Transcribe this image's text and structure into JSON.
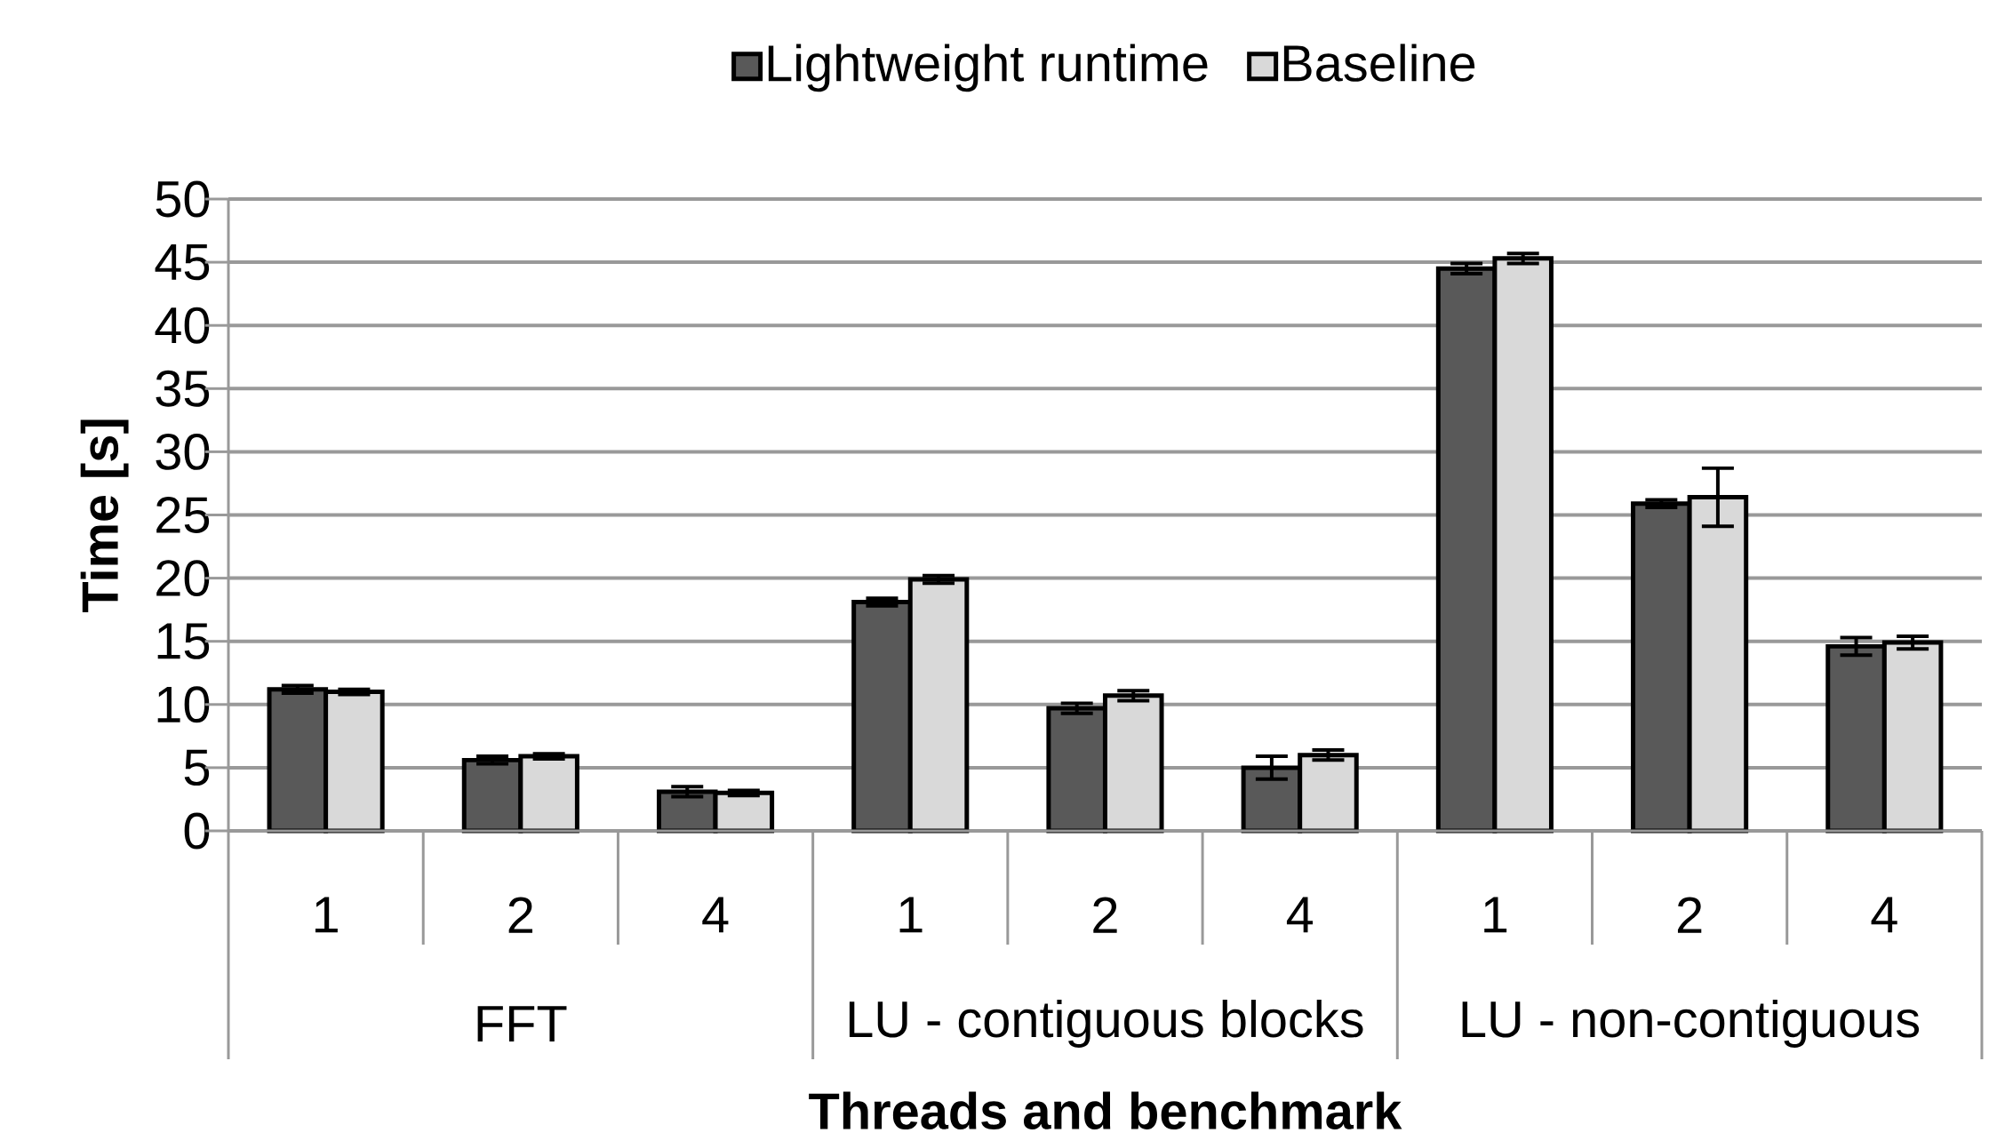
{
  "chart_data": {
    "type": "bar",
    "xlabel": "Threads and benchmark",
    "ylabel": "Time [s]",
    "categories": [
      "1",
      "2",
      "4",
      "1",
      "2",
      "4",
      "1",
      "2",
      "4"
    ],
    "annotations": [
      "FFT",
      "LU - contiguous blocks",
      "LU - non-contiguous"
    ],
    "series": [
      {
        "name": "Lightweight runtime",
        "color": "#595959",
        "values": [
          11.2,
          5.6,
          3.1,
          18.1,
          9.7,
          5.0,
          44.5,
          25.9,
          14.6
        ],
        "errors": [
          0.3,
          0.3,
          0.4,
          0.3,
          0.4,
          0.9,
          0.4,
          0.3,
          0.7
        ]
      },
      {
        "name": "Baseline",
        "color": "#d9d9d9",
        "values": [
          11.0,
          5.9,
          3.0,
          19.9,
          10.7,
          6.0,
          45.3,
          26.4,
          14.9
        ],
        "errors": [
          0.2,
          0.2,
          0.2,
          0.3,
          0.4,
          0.4,
          0.4,
          2.3,
          0.5
        ]
      }
    ],
    "ylim": [
      0,
      50
    ],
    "yticks": [
      0,
      5,
      10,
      15,
      20,
      25,
      30,
      35,
      40,
      45,
      50
    ],
    "grid": "y",
    "legend": "top"
  }
}
